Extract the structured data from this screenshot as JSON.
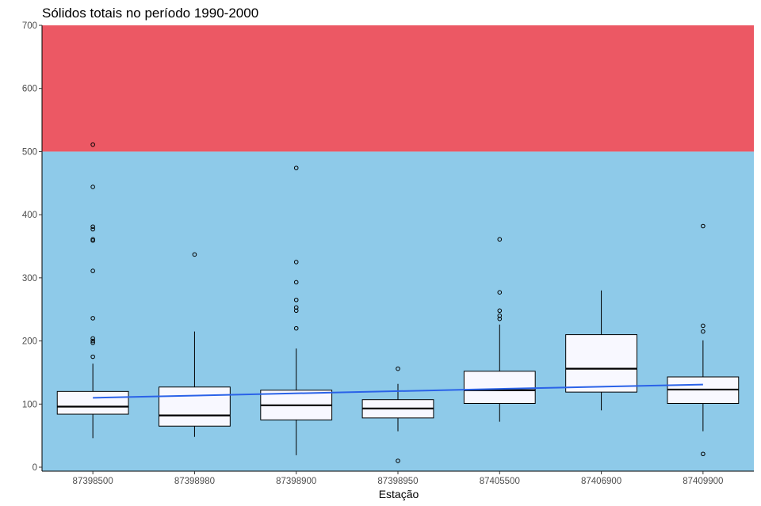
{
  "chart_data": {
    "type": "boxplot",
    "title": "Sólidos totais no período 1990-2000",
    "xlabel": "Estação",
    "ylabel": "",
    "ylim": [
      0,
      700
    ],
    "yticks": [
      0,
      100,
      200,
      300,
      400,
      500,
      600,
      700
    ],
    "categories": [
      "87398500",
      "87398980",
      "87398900",
      "87398950",
      "87405500",
      "87406900",
      "87409900"
    ],
    "boxes": [
      {
        "category": "87398500",
        "lower_whisker": 46,
        "q1": 84,
        "median": 96,
        "q3": 120,
        "upper_whisker": 164,
        "outliers": [
          175,
          197,
          200,
          204,
          236,
          311,
          359,
          361,
          377,
          381,
          444,
          511
        ]
      },
      {
        "category": "87398980",
        "lower_whisker": 48,
        "q1": 65,
        "median": 82,
        "q3": 127,
        "upper_whisker": 215,
        "outliers": [
          337
        ]
      },
      {
        "category": "87398900",
        "lower_whisker": 19,
        "q1": 75,
        "median": 98,
        "q3": 122,
        "upper_whisker": 188,
        "outliers": [
          220,
          248,
          253,
          265,
          293,
          325,
          474
        ]
      },
      {
        "category": "87398950",
        "lower_whisker": 57,
        "q1": 78,
        "median": 93,
        "q3": 107,
        "upper_whisker": 132,
        "outliers": [
          10,
          156
        ]
      },
      {
        "category": "87405500",
        "lower_whisker": 72,
        "q1": 101,
        "median": 122,
        "q3": 152,
        "upper_whisker": 226,
        "outliers": [
          235,
          240,
          248,
          277,
          361
        ]
      },
      {
        "category": "87406900",
        "lower_whisker": 90,
        "q1": 119,
        "median": 156,
        "q3": 210,
        "upper_whisker": 280,
        "outliers": []
      },
      {
        "category": "87409900",
        "lower_whisker": 57,
        "q1": 101,
        "median": 123,
        "q3": 143,
        "upper_whisker": 201,
        "outliers": [
          21,
          215,
          224,
          382
        ]
      }
    ],
    "bands": [
      {
        "from": 0,
        "to": 500,
        "color": "#8ecae9"
      },
      {
        "from": 500,
        "to": 700,
        "color": "#ec5864"
      }
    ],
    "trend_line": {
      "color": "#2a62e8",
      "start": 110,
      "end": 131
    },
    "box_fill": "#f8f8ff",
    "grid": false
  }
}
